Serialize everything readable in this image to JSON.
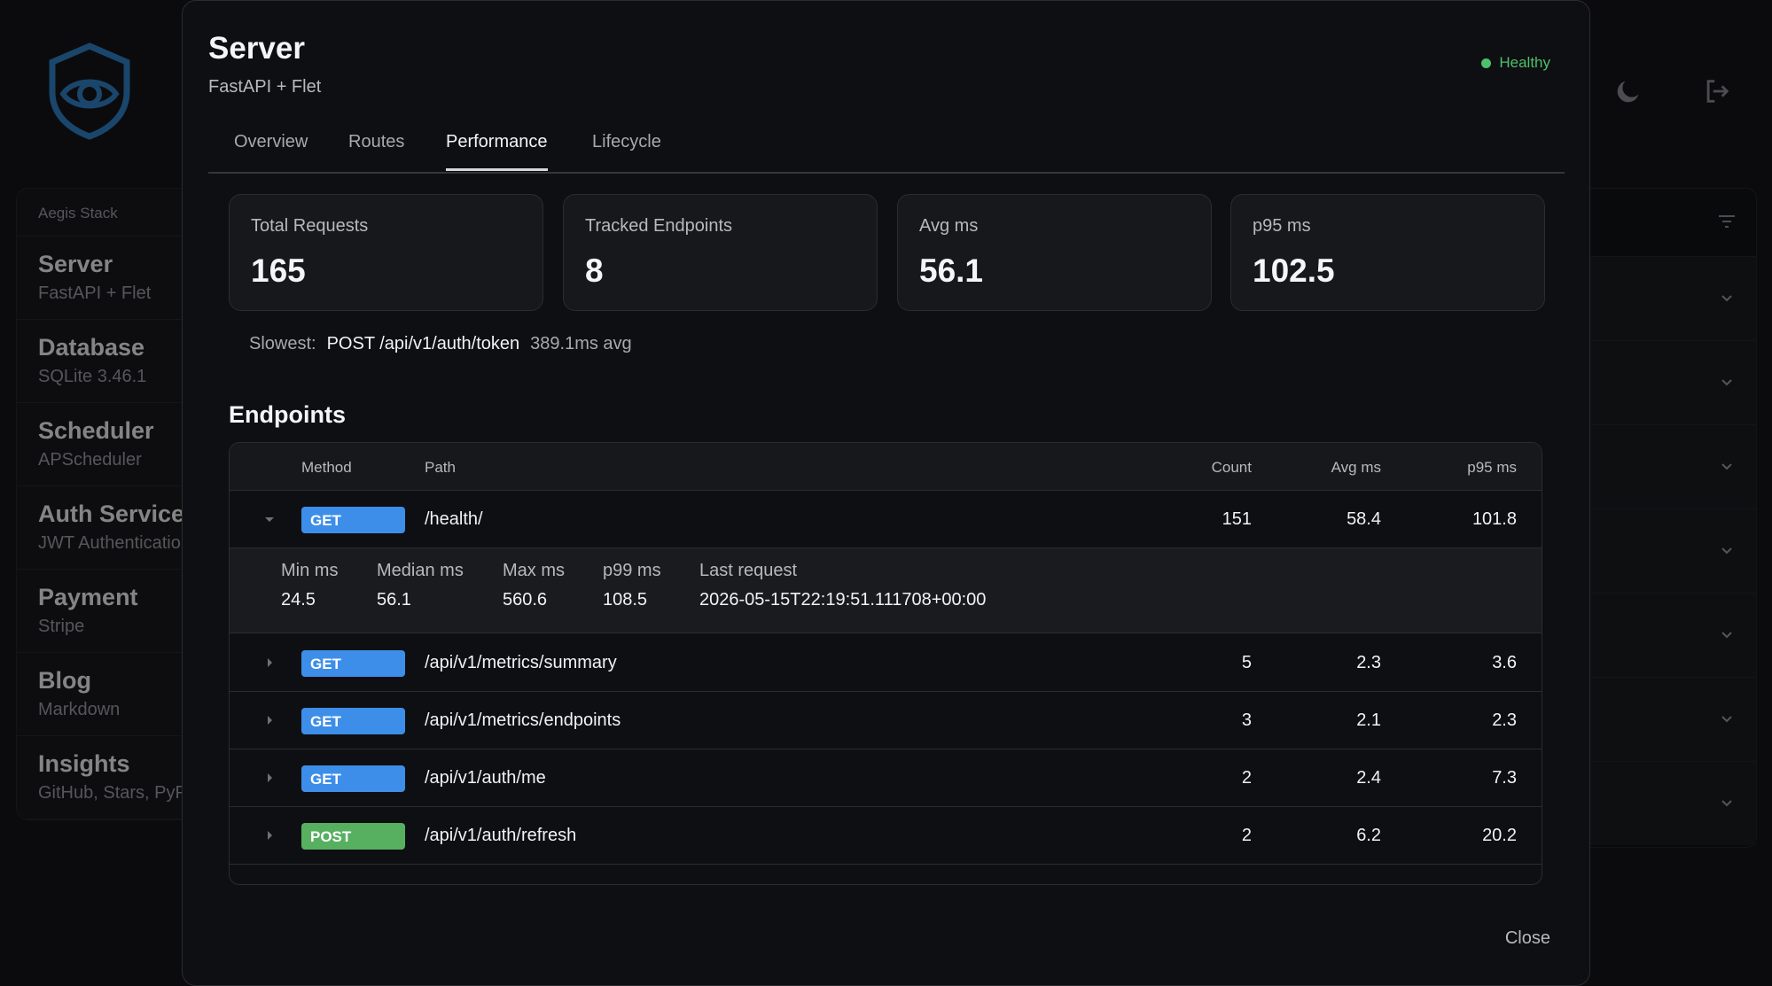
{
  "background": {
    "sidebar": {
      "header": "Aegis Stack",
      "items": [
        {
          "title": "Server",
          "subtitle": "FastAPI + Flet"
        },
        {
          "title": "Database",
          "subtitle": "SQLite 3.46.1"
        },
        {
          "title": "Scheduler",
          "subtitle": "APScheduler"
        },
        {
          "title": "Auth Service",
          "subtitle": "JWT Authentication"
        },
        {
          "title": "Payment",
          "subtitle": "Stripe"
        },
        {
          "title": "Blog",
          "subtitle": "Markdown"
        },
        {
          "title": "Insights",
          "subtitle": "GitHub, Stars, PyPI"
        }
      ]
    },
    "icons": [
      "shield-eye-logo",
      "moon-icon",
      "logout-icon",
      "filter-icon",
      "chevron-down-icon"
    ]
  },
  "modal": {
    "title": "Server",
    "subtitle": "FastAPI + Flet",
    "status": "Healthy",
    "status_color": "#4ec06a",
    "tabs": [
      "Overview",
      "Routes",
      "Performance",
      "Lifecycle"
    ],
    "active_tab": "Performance",
    "stats": [
      {
        "label": "Total Requests",
        "value": "165"
      },
      {
        "label": "Tracked Endpoints",
        "value": "8"
      },
      {
        "label": "Avg ms",
        "value": "56.1"
      },
      {
        "label": "p95 ms",
        "value": "102.5"
      }
    ],
    "slowest": {
      "label": "Slowest:",
      "endpoint": "POST /api/v1/auth/token",
      "avg": "389.1ms avg"
    },
    "endpoints_title": "Endpoints",
    "table": {
      "headers": {
        "method": "Method",
        "path": "Path",
        "count": "Count",
        "avg": "Avg ms",
        "p95": "p95 ms"
      },
      "rows": [
        {
          "method": "GET",
          "path": "/health/",
          "count": "151",
          "avg": "58.4",
          "p95": "101.8",
          "expanded": true
        },
        {
          "method": "GET",
          "path": "/api/v1/metrics/summary",
          "count": "5",
          "avg": "2.3",
          "p95": "3.6"
        },
        {
          "method": "GET",
          "path": "/api/v1/metrics/endpoints",
          "count": "3",
          "avg": "2.1",
          "p95": "2.3"
        },
        {
          "method": "GET",
          "path": "/api/v1/auth/me",
          "count": "2",
          "avg": "2.4",
          "p95": "7.3"
        },
        {
          "method": "POST",
          "path": "/api/v1/auth/refresh",
          "count": "2",
          "avg": "6.2",
          "p95": "20.2"
        }
      ],
      "detail": {
        "min_label": "Min ms",
        "min": "24.5",
        "median_label": "Median ms",
        "median": "56.1",
        "max_label": "Max ms",
        "max": "560.6",
        "p99_label": "p99 ms",
        "p99": "108.5",
        "last_label": "Last request",
        "last": "2026-05-15T22:19:51.111708+00:00"
      }
    },
    "close_label": "Close",
    "colors": {
      "get": "#3d8ee8",
      "post": "#57b060",
      "accent": "#1e5a8a"
    }
  }
}
